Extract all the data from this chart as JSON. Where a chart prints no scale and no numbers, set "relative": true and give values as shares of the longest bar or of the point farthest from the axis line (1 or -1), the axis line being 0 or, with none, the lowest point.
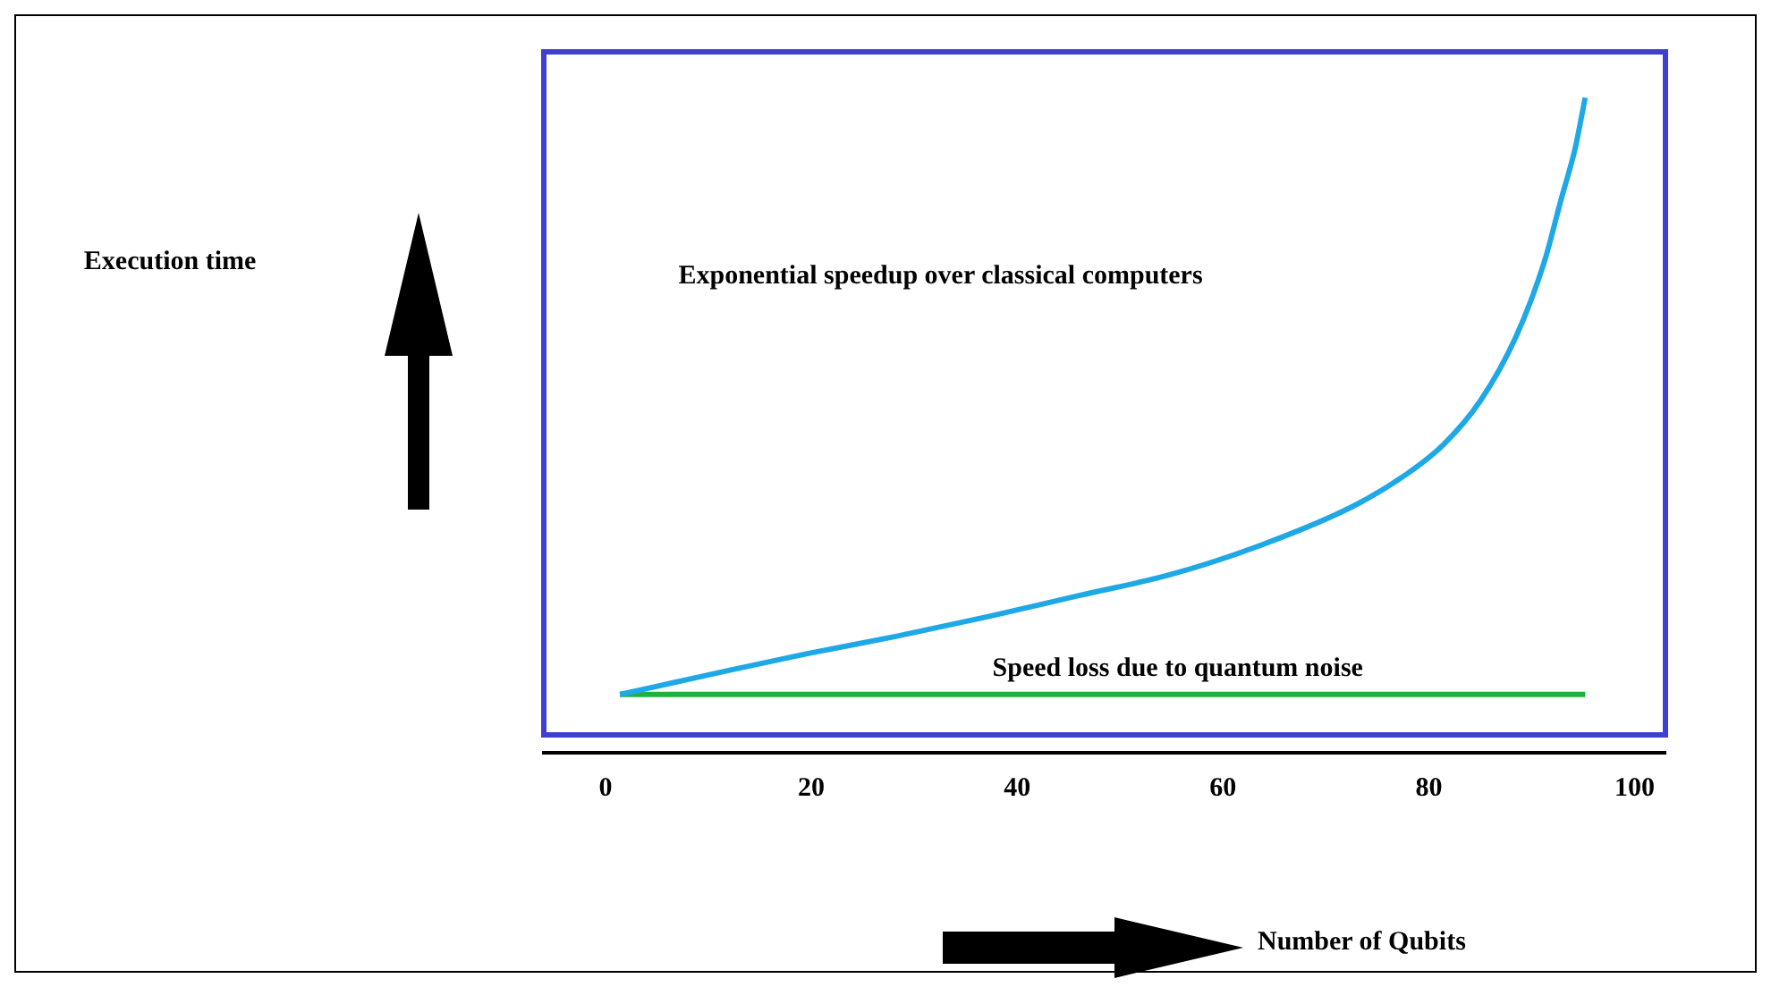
{
  "chart_data": {
    "type": "line",
    "relative": true,
    "xlabel": "Number of Qubits",
    "xlim": [
      -6,
      103
    ],
    "xticks": [
      0,
      20,
      40,
      60,
      80,
      100
    ],
    "grid": false,
    "legend": false,
    "marker": "none",
    "annotations": [
      "Exponential speedup over classical computers",
      "Speed loss due to quantum noise",
      "Execution time"
    ],
    "series": [
      {
        "color": "#1fa8e6",
        "x": [
          1.4,
          10.6,
          19.5,
          28.3,
          37.2,
          46,
          54.9,
          63.7,
          72.6,
          77.9,
          81.4,
          85,
          88.5,
          91.2,
          92.9,
          94.2,
          95.2
        ],
        "values": [
          0.089,
          0.121,
          0.151,
          0.178,
          0.208,
          0.24,
          0.272,
          0.317,
          0.376,
          0.426,
          0.47,
          0.537,
          0.636,
          0.748,
          0.847,
          0.921,
          1
        ]
      },
      {
        "color": "#1db33a",
        "x": [
          1.4,
          95.2
        ],
        "values": [
          0.089,
          0.089
        ]
      }
    ]
  }
}
